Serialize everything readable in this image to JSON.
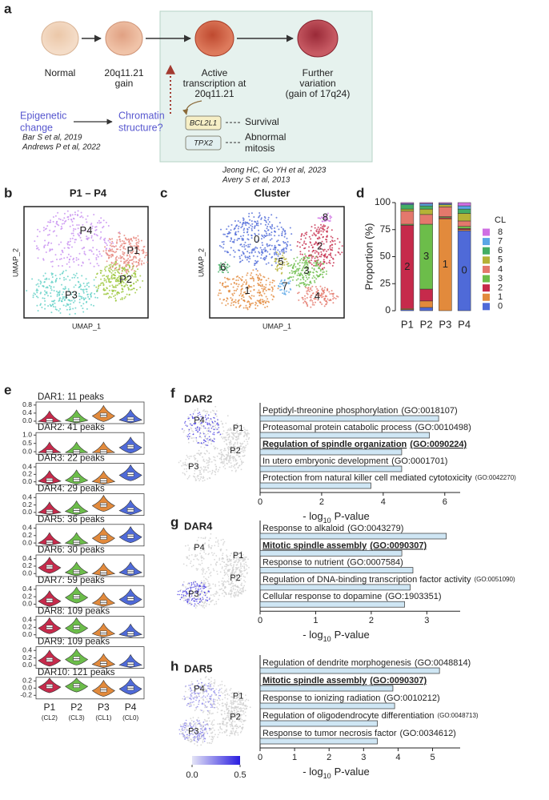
{
  "figure": {
    "panel_labels": [
      "a",
      "b",
      "c",
      "d",
      "e",
      "f",
      "g",
      "h"
    ],
    "schematic": {
      "stages": [
        [
          "Normal"
        ],
        [
          "20q11.21",
          "gain"
        ],
        [
          "Active",
          "transcription at",
          "20q11.21"
        ],
        [
          "Further",
          "variation",
          "(gain of 17q24)"
        ]
      ],
      "epigenetic": [
        "Epigenetic",
        "change"
      ],
      "chromatin": [
        "Chromatin",
        "structure?"
      ],
      "genes": [
        "BCL2L1",
        "TPX2"
      ],
      "outcomes": [
        [
          "Survival"
        ],
        [
          "Abnormal",
          "mitosis"
        ]
      ],
      "refs_left": [
        "Bar S et al, 2019",
        "Andrews P et al, 2022"
      ],
      "refs_right": [
        "Jeong HC, Go YH et al, 2023",
        "Avery S et al, 2013"
      ]
    },
    "umap_b": {
      "title": "P1 – P4",
      "labels": [
        "P1",
        "P2",
        "P3",
        "P4"
      ],
      "xlabel": "UMAP_1",
      "ylabel": "UMAP_2"
    },
    "umap_c": {
      "title": "Cluster",
      "labels": [
        "0",
        "1",
        "2",
        "3",
        "4",
        "5",
        "6",
        "7",
        "8"
      ],
      "xlabel": "UMAP_1",
      "ylabel": "UMAP_2"
    }
  },
  "chart_data": [
    {
      "type": "stacked_bar",
      "categories": [
        "P1",
        "P2",
        "P3",
        "P4"
      ],
      "ylabel": "Proportion (%)",
      "ylim": [
        0,
        100
      ],
      "yticks": [
        0,
        25,
        50,
        75,
        100
      ],
      "legend_title": "CL",
      "legend_highlight": [
        0,
        1,
        2,
        3
      ],
      "highlight_color": "#e0251b",
      "bar_labels": [
        "2",
        "3",
        "1",
        "0"
      ],
      "series": [
        {
          "name": "0",
          "color": "#4f6ad8",
          "values": [
            1,
            3,
            0,
            74
          ]
        },
        {
          "name": "1",
          "color": "#e28a3c",
          "values": [
            1,
            6,
            85,
            1
          ]
        },
        {
          "name": "2",
          "color": "#c62a4b",
          "values": [
            77,
            11,
            1,
            1
          ]
        },
        {
          "name": "3",
          "color": "#6cbd4a",
          "values": [
            1,
            60,
            1,
            2
          ]
        },
        {
          "name": "4",
          "color": "#e4786c",
          "values": [
            12,
            9,
            9,
            5
          ]
        },
        {
          "name": "5",
          "color": "#b5b236",
          "values": [
            2,
            5,
            2,
            7
          ]
        },
        {
          "name": "6",
          "color": "#43ad64",
          "values": [
            4,
            3,
            0,
            4
          ]
        },
        {
          "name": "7",
          "color": "#5aa6e6",
          "values": [
            1,
            2,
            1,
            3
          ]
        },
        {
          "name": "8",
          "color": "#cf6fe3",
          "values": [
            1,
            1,
            1,
            3
          ]
        }
      ]
    },
    {
      "type": "violin",
      "categories": [
        "P1",
        "P2",
        "P3",
        "P4"
      ],
      "subcategories": [
        "(CL2)",
        "(CL3)",
        "(CL1)",
        "(CL0)"
      ],
      "colors": [
        "#c62a4b",
        "#6cbd4a",
        "#e28a3c",
        "#4f6ad8"
      ],
      "panels": [
        {
          "title": "DAR1: 11 peaks",
          "ylim": [
            -0.12,
            0.95
          ],
          "yticks": [
            {
              "value": 0,
              "label": "0.0"
            },
            0.4,
            0.8
          ],
          "medians": [
            0.03,
            0.08,
            0.3,
            0.1
          ]
        },
        {
          "title": "DAR2: 41 peaks",
          "ylim": [
            -0.15,
            1.15
          ],
          "yticks": [
            {
              "value": 0,
              "label": "0.0"
            },
            0.5,
            {
              "value": 1,
              "label": "1.0"
            }
          ],
          "medians": [
            0,
            0,
            0,
            0.3
          ]
        },
        {
          "title": "DAR3: 22 peaks",
          "ylim": [
            -0.08,
            0.5
          ],
          "yticks": [
            {
              "value": 0,
              "label": "0.0"
            },
            0.2,
            0.4
          ],
          "medians": [
            0.04,
            0.06,
            0.03,
            0.2
          ]
        },
        {
          "title": "DAR4: 29 peaks",
          "ylim": [
            -0.08,
            0.5
          ],
          "yticks": [
            {
              "value": 0,
              "label": "0.0"
            },
            0.2,
            0.4
          ],
          "medians": [
            0.02,
            0.05,
            0.2,
            0.07
          ]
        },
        {
          "title": "DAR5: 36 peaks",
          "ylim": [
            -0.08,
            0.5
          ],
          "yticks": [
            {
              "value": 0,
              "label": "0.0"
            },
            0.2,
            0.4
          ],
          "medians": [
            0.02,
            0.02,
            0.15,
            0.18
          ]
        },
        {
          "title": "DAR6: 30 peaks",
          "ylim": [
            -0.08,
            0.5
          ],
          "yticks": [
            {
              "value": 0,
              "label": "0.0"
            },
            0.2,
            0.4
          ],
          "medians": [
            0.18,
            0.05,
            0.02,
            0.05
          ]
        },
        {
          "title": "DAR7: 59 peaks",
          "ylim": [
            -0.08,
            0.5
          ],
          "yticks": [
            {
              "value": 0,
              "label": "0.0"
            },
            0.2,
            0.4
          ],
          "medians": [
            0.1,
            0.2,
            0.05,
            0.15
          ]
        },
        {
          "title": "DAR8: 109 peaks",
          "ylim": [
            -0.08,
            0.5
          ],
          "yticks": [
            {
              "value": 0,
              "label": "0.0"
            },
            0.2,
            0.4
          ],
          "medians": [
            0.2,
            0.2,
            0.05,
            0.03
          ]
        },
        {
          "title": "DAR9: 109 peaks",
          "ylim": [
            -0.08,
            0.5
          ],
          "yticks": [
            {
              "value": 0,
              "label": "0.0"
            },
            0.2,
            0.4
          ],
          "medians": [
            0.15,
            0.18,
            0.05,
            0.03
          ]
        },
        {
          "title": "DAR10: 121 peaks",
          "ylim": [
            -0.3,
            0.3
          ],
          "yticks": [
            -0.2,
            {
              "value": 0,
              "label": "0.0"
            },
            0.2
          ],
          "medians": [
            0.05,
            0.07,
            -0.05,
            0
          ]
        }
      ]
    },
    {
      "type": "barh",
      "title": "DAR2",
      "umap_labels": [
        "P1",
        "P2",
        "P3",
        "P4"
      ],
      "color": "#cfe6f4",
      "highlight": 2,
      "highlight_color": "#e0251b",
      "categories": [
        "Peptidyl-threonine phosphorylation",
        "Proteasomal protein catabolic process",
        "Regulation of spindle organization",
        "In utero embryonic development",
        "Protection from natural killer cell mediated cytotoxicity"
      ],
      "go_ids": [
        "(GO:0018107)",
        "(GO:0010498)",
        "(GO:0090224)",
        "(GO:0001701)",
        "(GO:0042270)"
      ],
      "values": [
        5.8,
        5.5,
        4.6,
        4.6,
        3.6
      ],
      "xlim": [
        0,
        6.5
      ],
      "xticks": [
        0,
        2,
        4,
        6
      ],
      "xlabel": [
        "- log",
        "10",
        "P-value"
      ]
    },
    {
      "type": "barh",
      "title": "DAR4",
      "umap_labels": [
        "P1",
        "P2",
        "P3",
        "P4"
      ],
      "color": "#cfe6f4",
      "highlight": 1,
      "highlight_color": "#e0251b",
      "categories": [
        "Response to alkaloid",
        "Mitotic spindle assembly",
        "Response to nutrient",
        "Regulation of DNA-binding transcription factor activity",
        "Cellular response to dopamine"
      ],
      "go_ids": [
        "(GO:0043279)",
        "(GO:0090307)",
        "(GO:0007584)",
        "(GO:0051090)",
        "(GO:1903351)"
      ],
      "values": [
        3.35,
        2.55,
        2.75,
        2.7,
        2.6
      ],
      "xlim": [
        0,
        3.6
      ],
      "xticks": [
        0,
        1,
        2,
        3
      ],
      "xlabel": [
        "- log",
        "10",
        "P-value"
      ]
    },
    {
      "type": "barh",
      "title": "DAR5",
      "umap_labels": [
        "P1",
        "P2",
        "P3",
        "P4"
      ],
      "color": "#cfe6f4",
      "highlight": 1,
      "highlight_color": "#e0251b",
      "categories": [
        "Regulation of dendrite morphogenesis",
        "Mitotic spindle assembly",
        "Response to ionizing radiation",
        "Regulation of oligodendrocyte differentiation",
        "Response to tumor necrosis factor"
      ],
      "go_ids": [
        "(GO:0048814)",
        "(GO:0090307)",
        "(GO:0010212)",
        "(GO:0048713)",
        "(GO:0034612)"
      ],
      "values": [
        5.2,
        3.85,
        3.9,
        3.4,
        3.4
      ],
      "xlim": [
        0,
        5.8
      ],
      "xticks": [
        0,
        1,
        2,
        3,
        4,
        5
      ],
      "xlabel": [
        "- log",
        "10",
        "P-value"
      ],
      "colorbar": {
        "lim": [
          0,
          0.5
        ],
        "ticks": [
          {
            "value": 0,
            "label": "0.0"
          },
          0.5
        ]
      }
    }
  ]
}
